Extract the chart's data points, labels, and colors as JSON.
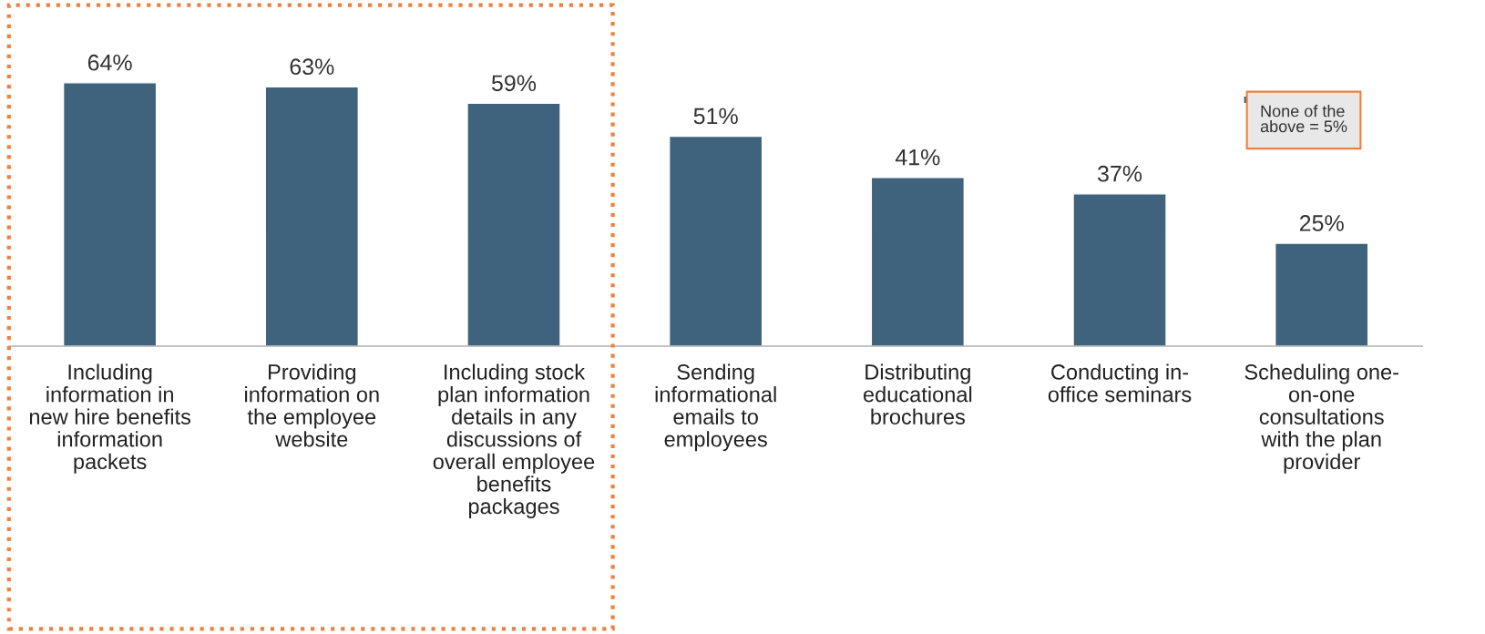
{
  "chart_data": {
    "type": "bar",
    "categories": [
      "Including\ninformation in\nnew hire benefits\ninformation\npackets",
      "Providing\ninformation on\nthe employee\nwebsite",
      "Including stock\nplan information\ndetails in any\ndiscussions of\noverall employee\nbenefits\npackages",
      "Sending\ninformational\nemails to\nemployees",
      "Distributing\neducational\nbrochures",
      "Conducting in-\noffice seminars",
      "Scheduling one-\non-one\nconsultations\nwith the plan\nprovider"
    ],
    "values": [
      64,
      63,
      59,
      51,
      41,
      37,
      25
    ],
    "value_labels": [
      "64%",
      "63%",
      "59%",
      "51%",
      "41%",
      "37%",
      "25%"
    ],
    "color": "#3f637c",
    "annotations": [
      "None of the\nabove = 5%"
    ],
    "grid": false,
    "legend": false
  }
}
